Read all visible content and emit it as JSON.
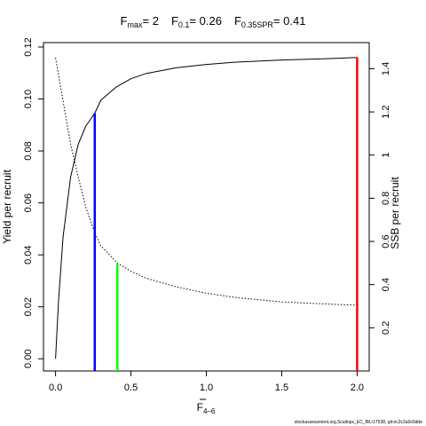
{
  "title": {
    "fmax_label": "F",
    "fmax_sub": "max",
    "fmax_value": "= 2",
    "f01_label": "F",
    "f01_sub": "0.1",
    "f01_value": "= 0.26",
    "fspr_label": "F",
    "fspr_sub": "0.35SPR",
    "fspr_value": "= 0.41"
  },
  "footer": "stockassessment.org,Scallops_EC_fM,r17538, git:ec2c2a0c6dde",
  "colors": {
    "fmax": "#ff0000",
    "f01": "#0000ff",
    "fspr": "#00ff00",
    "axis": "#000000"
  },
  "chart_data": {
    "type": "line",
    "xlabel_main": "F",
    "xlabel_sub": "4–6",
    "ylabel_left": "Yield per recruit",
    "ylabel_right": "SSB per recruit",
    "xlim": [
      -0.08,
      2.08
    ],
    "ylim_left": [
      -0.0047,
      0.1217
    ],
    "ylim_right": [
      0,
      1.521
    ],
    "x_ticks": [
      "0.0",
      "0.5",
      "1.0",
      "1.5",
      "2.0"
    ],
    "x_tick_values": [
      0,
      0.5,
      1.0,
      1.5,
      2.0
    ],
    "y_left_ticks": [
      "0.00",
      "0.02",
      "0.04",
      "0.06",
      "0.08",
      "0.10",
      "0.12"
    ],
    "y_left_tick_values": [
      0,
      0.02,
      0.04,
      0.06,
      0.08,
      0.1,
      0.12
    ],
    "y_right_ticks": [
      "0.2",
      "0.4",
      "0.6",
      "0.8",
      "1",
      "1.2",
      "1.4"
    ],
    "y_right_tick_values": [
      0.2,
      0.4,
      0.6,
      0.8,
      1.0,
      1.2,
      1.4
    ],
    "series": [
      {
        "style": "solid",
        "axis": "left",
        "x": [
          0,
          0.02,
          0.05,
          0.1,
          0.15,
          0.2,
          0.26,
          0.3,
          0.4,
          0.5,
          0.6,
          0.8,
          1.0,
          1.2,
          1.5,
          1.8,
          2.0
        ],
        "values": [
          0.0,
          0.0225,
          0.047,
          0.07,
          0.0825,
          0.0895,
          0.0945,
          0.0995,
          0.1045,
          0.1078,
          0.1098,
          0.112,
          0.1133,
          0.1142,
          0.115,
          0.1155,
          0.116
        ]
      },
      {
        "style": "dotted",
        "axis": "right",
        "x": [
          0,
          0.05,
          0.1,
          0.15,
          0.2,
          0.26,
          0.3,
          0.41,
          0.5,
          0.6,
          0.8,
          1.0,
          1.2,
          1.5,
          1.8,
          2.0
        ],
        "values": [
          1.45,
          1.25,
          1.05,
          0.9,
          0.76,
          0.64,
          0.58,
          0.5,
          0.462,
          0.43,
          0.39,
          0.36,
          0.34,
          0.32,
          0.31,
          0.305
        ]
      }
    ],
    "reference_lines": [
      {
        "x": 0.26,
        "y": 0.0945,
        "axis": "left",
        "color": "#0000ff"
      },
      {
        "x": 0.41,
        "y": 0.5,
        "axis": "right",
        "color": "#00ff00"
      },
      {
        "x": 2.0,
        "y": 0.116,
        "axis": "left",
        "color": "#ff0000"
      }
    ]
  }
}
